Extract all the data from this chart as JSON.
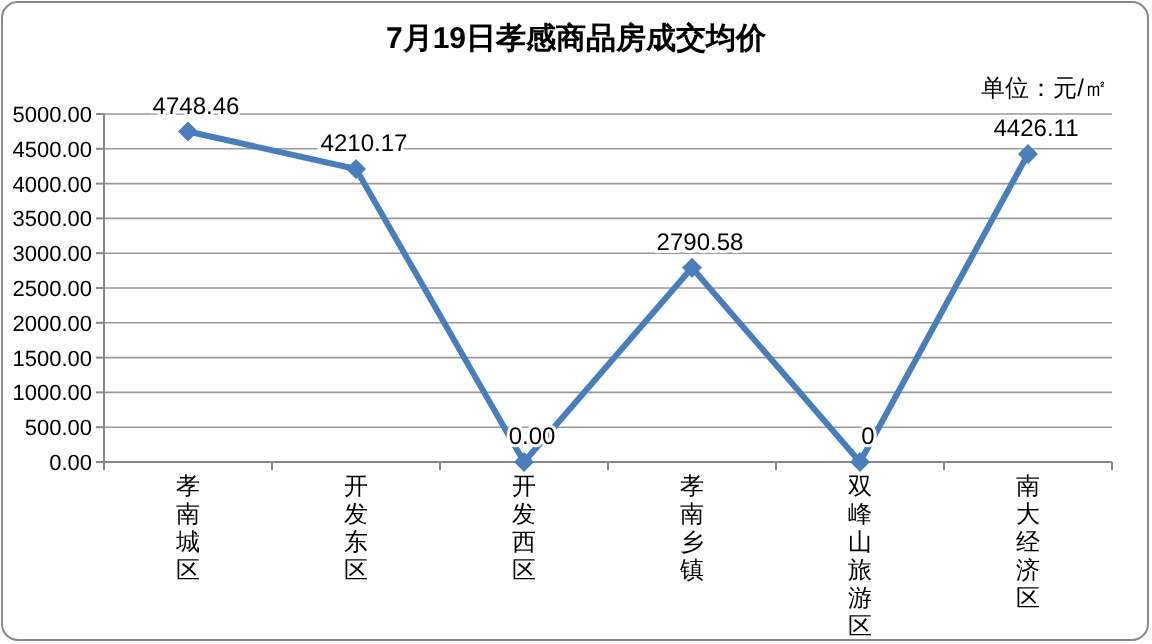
{
  "chart_data": {
    "type": "line",
    "title": "7月19日孝感商品房成交均价",
    "annotations": [
      "单位：元/㎡"
    ],
    "categories": [
      "孝南城区",
      "开发东区",
      "开发西区",
      "孝南乡镇",
      "双峰山旅游区",
      "南大经济区"
    ],
    "series": [
      {
        "color": "#4a7ebb",
        "values": [
          4748.46,
          4210.17,
          0,
          2790.58,
          0,
          4426.11
        ],
        "value_labels": [
          "4748.46",
          "4210.17",
          "0.00",
          "2790.58",
          "0",
          "4426.11"
        ]
      }
    ],
    "ylim": [
      0,
      5000
    ],
    "yticks": [
      {
        "value": 0,
        "label": "0.00"
      },
      {
        "value": 500,
        "label": "500.00"
      },
      {
        "value": 1000,
        "label": "1000.00"
      },
      {
        "value": 1500,
        "label": "1500.00"
      },
      {
        "value": 2000,
        "label": "2000.00"
      },
      {
        "value": 2500,
        "label": "2500.00"
      },
      {
        "value": 3000,
        "label": "3000.00"
      },
      {
        "value": 3500,
        "label": "3500.00"
      },
      {
        "value": 4000,
        "label": "4000.00"
      },
      {
        "value": 4500,
        "label": "4500.00"
      },
      {
        "value": 5000,
        "label": "5000.00"
      }
    ],
    "grid": "y",
    "marker": "diamond",
    "line_style": "solid"
  }
}
